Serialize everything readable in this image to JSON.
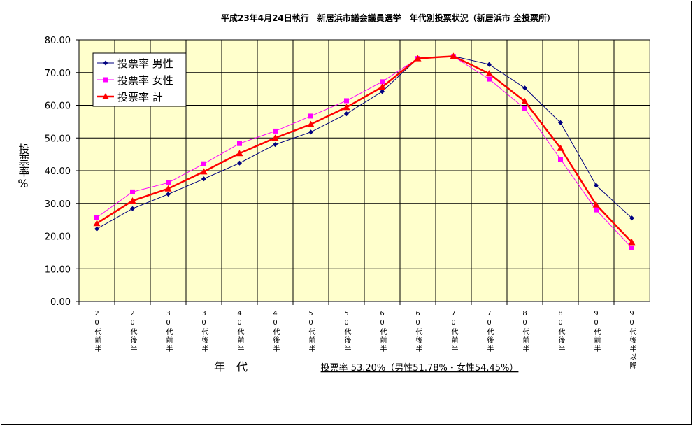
{
  "chart_data": {
    "type": "line",
    "title": "平成23年4月24日執行　新居浜市議会議員選挙　年代別投票状況（新居浜市 全投票所）",
    "y_label": "投票率%",
    "x_label": "年　代",
    "annotation": "投票率 53.20%（男性51.78%・女性54.45%）",
    "categories": [
      "20代前半",
      "20代後半",
      "30代前半",
      "30代後半",
      "40代前半",
      "40代後半",
      "50代前半",
      "50代後半",
      "60代前半",
      "60代後半",
      "70代前半",
      "70代後半",
      "80代前半",
      "80代後半",
      "90代前半",
      "90代後半以降"
    ],
    "series": [
      {
        "name": "投票率 男性",
        "color": "#000080",
        "marker": "diamond",
        "width": 1,
        "values": [
          22.2,
          28.4,
          32.8,
          37.5,
          42.3,
          48.0,
          51.8,
          57.4,
          64.2,
          74.3,
          75.0,
          72.5,
          65.3,
          54.7,
          35.5,
          25.5
        ]
      },
      {
        "name": "投票率 女性",
        "color": "#ff00ff",
        "marker": "square",
        "width": 1,
        "values": [
          25.7,
          33.5,
          36.3,
          42.1,
          48.3,
          52.1,
          56.7,
          61.4,
          67.2,
          74.3,
          74.9,
          68.0,
          59.0,
          43.5,
          28.0,
          16.4
        ]
      },
      {
        "name": "投票率 計",
        "color": "#ff0000",
        "marker": "triangle",
        "width": 2.5,
        "values": [
          23.9,
          30.8,
          34.5,
          39.7,
          45.3,
          50.0,
          54.2,
          59.4,
          65.6,
          74.3,
          75.0,
          69.7,
          61.2,
          46.9,
          29.6,
          18.1
        ]
      }
    ],
    "ylim": [
      0,
      80
    ],
    "yticks": [
      {
        "value": 0,
        "label": "0.00"
      },
      {
        "value": 10,
        "label": "10.00"
      },
      {
        "value": 20,
        "label": "20.00"
      },
      {
        "value": 30,
        "label": "30.00"
      },
      {
        "value": 40,
        "label": "40.00"
      },
      {
        "value": 50,
        "label": "50.00"
      },
      {
        "value": 60,
        "label": "60.00"
      },
      {
        "value": 70,
        "label": "70.00"
      },
      {
        "value": 80,
        "label": "80.00"
      }
    ],
    "grid": true,
    "legend": "top-left",
    "plot_background": "#ffffcc"
  }
}
